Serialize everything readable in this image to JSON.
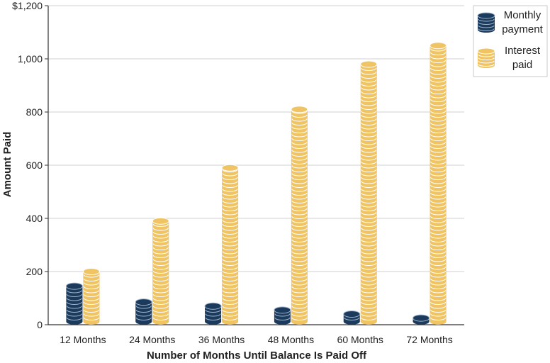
{
  "chart_data": {
    "type": "bar",
    "title": "",
    "xlabel": "Number of Months Until Balance Is Paid Off",
    "ylabel": "Amount Paid",
    "ylim": [
      0,
      1200
    ],
    "y_ticks": [
      0,
      200,
      400,
      600,
      800,
      1000,
      1200
    ],
    "y_tick_labels": [
      "0",
      "200",
      "400",
      "600",
      "800",
      "1,000",
      "$1,200"
    ],
    "grid": true,
    "legend_position": "top-right",
    "categories": [
      "12 Months",
      "24 Months",
      "36 Months",
      "48 Months",
      "60 Months",
      "72 Months"
    ],
    "series": [
      {
        "name": "Monthly payment",
        "legend_lines": [
          "Monthly",
          "payment"
        ],
        "color": "#1b3a5c",
        "values": [
          145,
          85,
          70,
          55,
          40,
          25
        ]
      },
      {
        "name": "Interest paid",
        "legend_lines": [
          "Interest",
          "paid"
        ],
        "color": "#f0c463",
        "values": [
          200,
          390,
          590,
          810,
          980,
          1050
        ]
      }
    ]
  }
}
